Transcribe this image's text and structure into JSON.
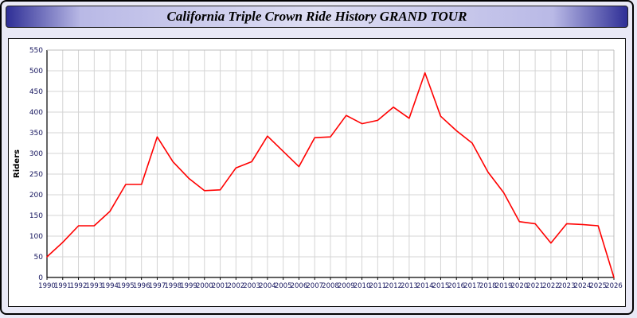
{
  "window": {
    "title": "California Triple Crown Ride History GRAND TOUR"
  },
  "chart_data": {
    "type": "line",
    "title": "California Triple Crown Ride History GRAND TOUR",
    "xlabel": "",
    "ylabel": "Riders",
    "ylim": [
      0,
      550
    ],
    "ytick_step": 50,
    "grid": true,
    "legend": "none",
    "line_color": "#ff0000",
    "categories": [
      "1990",
      "1991",
      "1992",
      "1993",
      "1994",
      "1995",
      "1996",
      "1997",
      "1998",
      "1999",
      "2000",
      "2001",
      "2002",
      "2003",
      "2004",
      "2005",
      "2006",
      "2007",
      "2008",
      "2009",
      "2010",
      "2011",
      "2012",
      "2013",
      "2014",
      "2015",
      "2016",
      "2017",
      "2018",
      "2019",
      "2020",
      "2021",
      "2022",
      "2023",
      "2024",
      "2025",
      "2026"
    ],
    "values": [
      50,
      85,
      125,
      125,
      160,
      225,
      225,
      340,
      280,
      240,
      210,
      212,
      265,
      280,
      342,
      305,
      268,
      338,
      340,
      392,
      372,
      380,
      412,
      385,
      495,
      390,
      355,
      325,
      255,
      205,
      135,
      130,
      83,
      130,
      128,
      125,
      0
    ]
  }
}
